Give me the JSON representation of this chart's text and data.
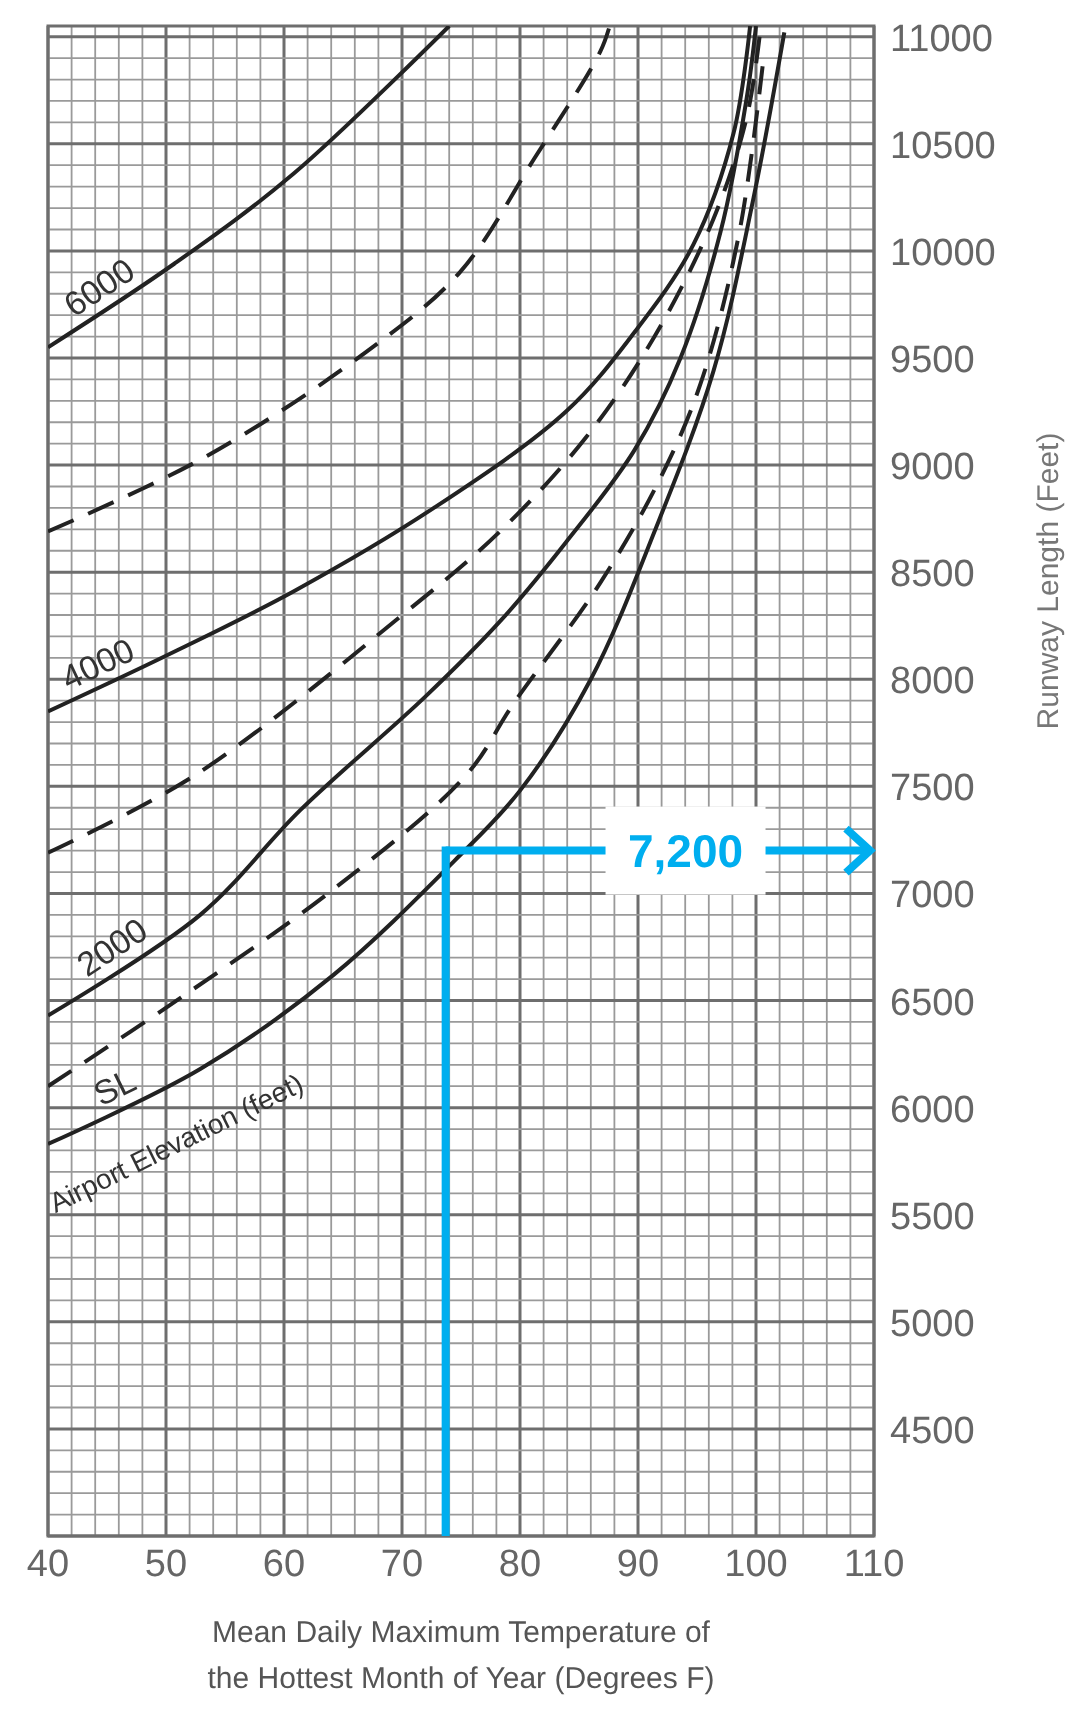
{
  "chart_data": {
    "type": "line",
    "xlabel": "Mean Daily Maximum Temperature of\nthe Hottest Month of Year (Degrees F)",
    "ylabel": "Runway Length (Feet)",
    "legend_title": "Airport Elevation (feet)",
    "xlim": [
      40,
      110
    ],
    "ylim": [
      4000,
      11050
    ],
    "xticks": [
      40,
      50,
      60,
      70,
      80,
      90,
      100,
      110
    ],
    "yticks": [
      4500,
      5000,
      5500,
      6000,
      6500,
      7000,
      7500,
      8000,
      8500,
      9000,
      9500,
      10000,
      10500,
      11000
    ],
    "grid": true,
    "series": [
      {
        "name": "6000",
        "color": "#222222",
        "line_style": "solid",
        "x": [
          40,
          50.7,
          60.8,
          74
        ],
        "values": [
          9550,
          9940,
          10360,
          11050
        ]
      },
      {
        "color": "#222222",
        "line_style": "dashed",
        "x": [
          40,
          53.4,
          67,
          74.9,
          81.2,
          86.8,
          87.6
        ],
        "values": [
          8690,
          9040,
          9530,
          9900,
          10430,
          10930,
          11050
        ]
      },
      {
        "name": "4000",
        "color": "#222222",
        "line_style": "solid",
        "x": [
          40,
          50,
          60.8,
          72.7,
          83.9,
          89.7,
          94.7,
          98.1,
          99.5
        ],
        "values": [
          7850,
          8110,
          8410,
          8800,
          9250,
          9620,
          10030,
          10550,
          11050
        ]
      },
      {
        "color": "#222222",
        "line_style": "dashed",
        "x": [
          40,
          52.4,
          69.8,
          78.3,
          85.6,
          91.4,
          96.4,
          99.2,
          100.3
        ],
        "values": [
          7190,
          7550,
          8290,
          8690,
          9130,
          9600,
          10150,
          10620,
          11000
        ]
      },
      {
        "name": "2000",
        "color": "#222222",
        "line_style": "solid",
        "x": [
          40,
          52.9,
          61.4,
          72,
          78.3,
          83.9,
          89.7,
          93.6,
          97,
          99.2,
          100
        ],
        "values": [
          6430,
          6900,
          7390,
          7920,
          8270,
          8640,
          9070,
          9500,
          10090,
          10710,
          11050
        ]
      },
      {
        "color": "#222222",
        "line_style": "dashed",
        "x": [
          40,
          51.7,
          64.2,
          75.4,
          79.5,
          86.8,
          91.9,
          95.3,
          98.6,
          100.7
        ],
        "values": [
          6100,
          6530,
          7020,
          7550,
          7890,
          8450,
          8940,
          9380,
          10090,
          10930
        ]
      },
      {
        "name": "SL",
        "color": "#222222",
        "line_style": "solid",
        "x": [
          40,
          52.9,
          64.2,
          74.4,
          80,
          86,
          91.4,
          96.4,
          99.8,
          102.4
        ],
        "values": [
          5830,
          6180,
          6620,
          7150,
          7480,
          8000,
          8690,
          9440,
          10250,
          11020
        ]
      }
    ],
    "ref_lines": [
      {
        "axis": "x",
        "value": 73.7,
        "color": "#00aeef"
      },
      {
        "axis": "y",
        "value": 7200,
        "label": "7,200",
        "color": "#00aeef"
      }
    ]
  }
}
